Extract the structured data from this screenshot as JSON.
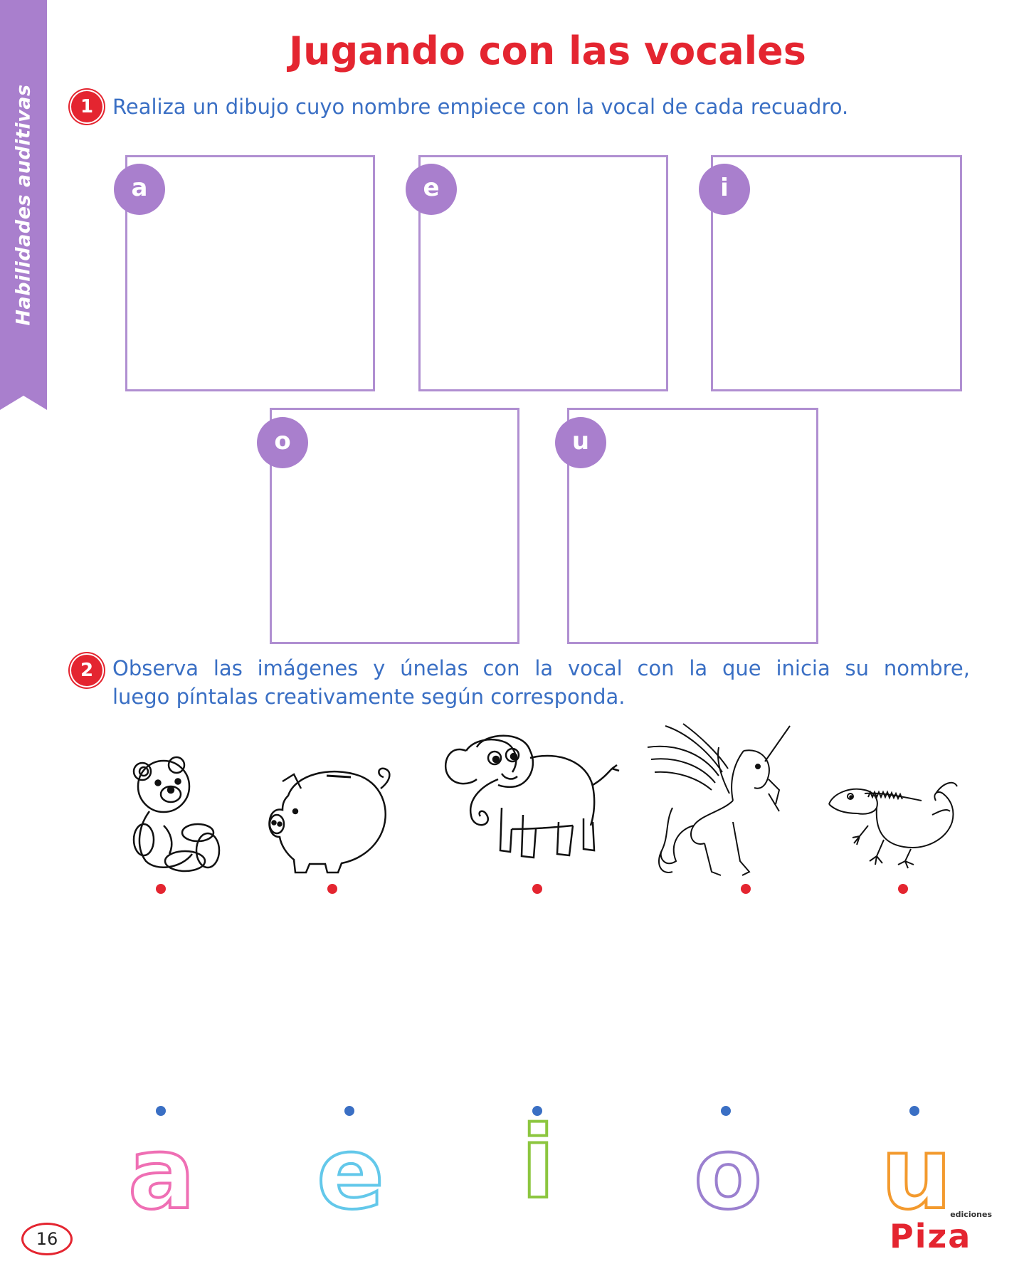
{
  "side_tab": {
    "label": "Habilidades auditivas",
    "color": "#a97fcd"
  },
  "title": "Jugando con las vocales",
  "exercise1": {
    "number": "1",
    "instruction": "Realiza un dibujo cuyo nombre empiece con la vocal de cada recuadro.",
    "boxes": [
      "a",
      "e",
      "i",
      "o",
      "u"
    ]
  },
  "exercise2": {
    "number": "2",
    "instruction_line1": "Observa las imágenes y únelas con la vocal con la que inicia su nombre,",
    "instruction_line2": "luego píntalas creativamente según corresponda.",
    "images": [
      "teddy-bear-icon",
      "piggy-bank-icon",
      "elephant-icon",
      "unicorn-icon",
      "iguana-icon"
    ],
    "letters": [
      {
        "char": "a",
        "color": "#ef6fb4"
      },
      {
        "char": "e",
        "color": "#63c8ea"
      },
      {
        "char": "i",
        "color": "#8cc63f"
      },
      {
        "char": "o",
        "color": "#9b80cf"
      },
      {
        "char": "u",
        "color": "#f39a2e"
      }
    ]
  },
  "page_number": "16",
  "brand": {
    "small": "ediciones",
    "name": "Piza"
  }
}
